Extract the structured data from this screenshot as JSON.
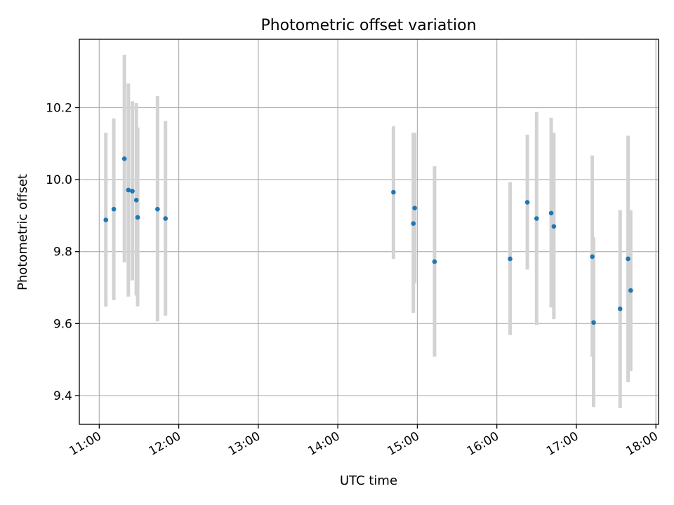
{
  "chart_data": {
    "type": "scatter",
    "title": "Photometric offset variation",
    "xlabel": "UTC time",
    "ylabel": "Photometric offset",
    "x_axis": {
      "unit": "time",
      "range": [
        "10:45",
        "18:02"
      ],
      "ticks": [
        "11:00",
        "12:00",
        "13:00",
        "14:00",
        "15:00",
        "16:00",
        "17:00",
        "18:00"
      ]
    },
    "y_axis": {
      "range": [
        9.32,
        10.39
      ],
      "ticks": [
        "9.4",
        "9.6",
        "9.8",
        "10.0",
        "10.2"
      ]
    },
    "grid": true,
    "colors": {
      "marker": "#1f77b4",
      "error_bar": "#d3d3d3",
      "grid": "#b0b0b0"
    },
    "series": [
      {
        "points": [
          {
            "x": "11:05",
            "y": 9.888,
            "yerr_low": 9.647,
            "yerr_high": 10.13
          },
          {
            "x": "11:11",
            "y": 9.918,
            "yerr_low": 9.665,
            "yerr_high": 10.17
          },
          {
            "x": "11:19",
            "y": 10.058,
            "yerr_low": 9.77,
            "yerr_high": 10.347
          },
          {
            "x": "11:22",
            "y": 9.971,
            "yerr_low": 9.675,
            "yerr_high": 10.267
          },
          {
            "x": "11:25",
            "y": 9.968,
            "yerr_low": 9.72,
            "yerr_high": 10.218
          },
          {
            "x": "11:28",
            "y": 9.943,
            "yerr_low": 9.678,
            "yerr_high": 10.213
          },
          {
            "x": "11:29",
            "y": 9.895,
            "yerr_low": 9.648,
            "yerr_high": 10.145
          },
          {
            "x": "11:44",
            "y": 9.918,
            "yerr_low": 9.606,
            "yerr_high": 10.232
          },
          {
            "x": "11:50",
            "y": 9.892,
            "yerr_low": 9.622,
            "yerr_high": 10.163
          },
          {
            "x": "14:42",
            "y": 9.965,
            "yerr_low": 9.78,
            "yerr_high": 10.148
          },
          {
            "x": "14:57",
            "y": 9.878,
            "yerr_low": 9.63,
            "yerr_high": 10.13
          },
          {
            "x": "14:58",
            "y": 9.921,
            "yerr_low": 9.712,
            "yerr_high": 10.13
          },
          {
            "x": "15:13",
            "y": 9.772,
            "yerr_low": 9.508,
            "yerr_high": 10.037
          },
          {
            "x": "16:10",
            "y": 9.78,
            "yerr_low": 9.568,
            "yerr_high": 9.993
          },
          {
            "x": "16:23",
            "y": 9.937,
            "yerr_low": 9.75,
            "yerr_high": 10.125
          },
          {
            "x": "16:30",
            "y": 9.892,
            "yerr_low": 9.596,
            "yerr_high": 10.188
          },
          {
            "x": "16:41",
            "y": 9.907,
            "yerr_low": 9.645,
            "yerr_high": 10.172
          },
          {
            "x": "16:43",
            "y": 9.87,
            "yerr_low": 9.612,
            "yerr_high": 10.13
          },
          {
            "x": "17:12",
            "y": 9.786,
            "yerr_low": 9.508,
            "yerr_high": 10.067
          },
          {
            "x": "17:13",
            "y": 9.603,
            "yerr_low": 9.368,
            "yerr_high": 9.84
          },
          {
            "x": "17:33",
            "y": 9.641,
            "yerr_low": 9.365,
            "yerr_high": 9.915
          },
          {
            "x": "17:39",
            "y": 9.78,
            "yerr_low": 9.437,
            "yerr_high": 10.122
          },
          {
            "x": "17:41",
            "y": 9.692,
            "yerr_low": 9.468,
            "yerr_high": 9.915
          }
        ]
      }
    ]
  }
}
